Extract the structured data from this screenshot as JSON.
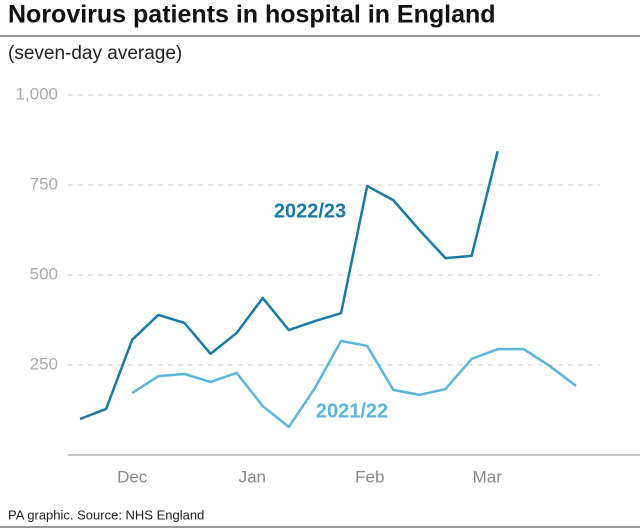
{
  "chart_data": {
    "type": "line",
    "title": "Norovirus patients in hospital in England",
    "subtitle": "(seven-day average)",
    "source": "PA graphic. Source: NHS England",
    "xlim": [
      0,
      19
    ],
    "xticks": [
      {
        "value": 2,
        "label": "Dec"
      },
      {
        "value": 6.6,
        "label": "Jan"
      },
      {
        "value": 11.1,
        "label": "Feb"
      },
      {
        "value": 15.6,
        "label": "Mar"
      }
    ],
    "ylim": [
      0,
      1000
    ],
    "yticks": [
      250,
      500,
      750,
      {
        "value": 1000,
        "label": "1,000"
      }
    ],
    "grid": true,
    "series": [
      {
        "name": "2022/23",
        "color": "#1a7aa6",
        "x": [
          0,
          1,
          2,
          3,
          4,
          5,
          6,
          7,
          8,
          9,
          10,
          11,
          12,
          13,
          14,
          15,
          16
        ],
        "values": [
          100,
          128,
          320,
          389,
          367,
          281,
          339,
          436,
          347,
          372,
          394,
          747,
          708,
          625,
          547,
          553,
          844
        ]
      },
      {
        "name": "2021/22",
        "color": "#5bb5dc",
        "x": [
          2,
          3,
          4,
          5,
          6,
          7,
          8,
          9,
          10,
          11,
          12,
          13,
          14,
          15,
          16,
          17,
          18,
          19
        ],
        "values": [
          172,
          219,
          225,
          203,
          228,
          136,
          78,
          186,
          317,
          303,
          181,
          167,
          183,
          267,
          294,
          294,
          247,
          192
        ]
      }
    ]
  }
}
